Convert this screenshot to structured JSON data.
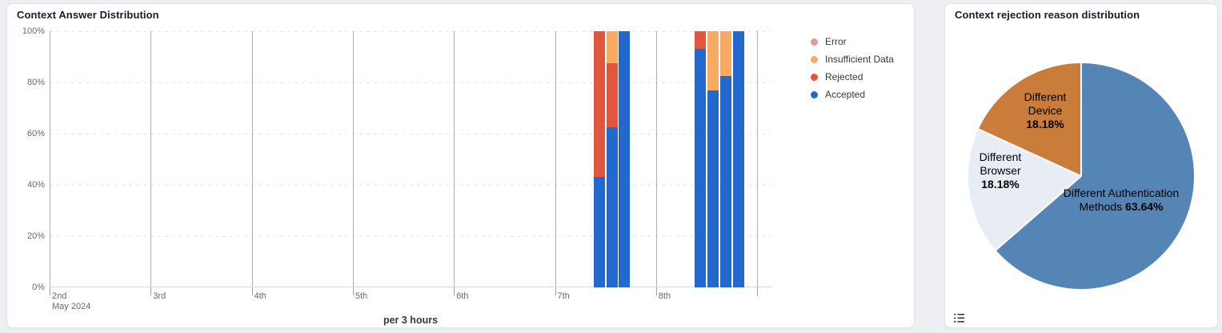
{
  "left_panel": {
    "title": "Context Answer Distribution",
    "x_axis_title": "per 3 hours",
    "legend": [
      {
        "label": "Error",
        "color": "#e7998f"
      },
      {
        "label": "Insufficient Data",
        "color": "#f9aa62"
      },
      {
        "label": "Rejected",
        "color": "#e0563f"
      },
      {
        "label": "Accepted",
        "color": "#2268cd"
      }
    ]
  },
  "right_panel": {
    "title": "Context rejection reason distribution",
    "legend_toggle_icon": "list-icon"
  },
  "chart_data": [
    {
      "type": "bar",
      "subtype": "stacked-percentage-histogram",
      "title": "Context Answer Distribution",
      "interval": "per 3 hours",
      "xlabel": "per 3 hours",
      "ylabel": "",
      "ylim": [
        0,
        100
      ],
      "grid": true,
      "legend_position": "right",
      "y_ticks": [
        "0%",
        "20%",
        "40%",
        "60%",
        "80%",
        "100%"
      ],
      "x_ticks": [
        "2nd",
        "3rd",
        "4th",
        "5th",
        "6th",
        "7th",
        "8th"
      ],
      "x_start_sublabel": "May 2024",
      "series_order_bottom_to_top": [
        "Accepted",
        "Rejected",
        "Insufficient Data",
        "Error"
      ],
      "colors": {
        "Accepted": "#2268cd",
        "Rejected": "#e0563f",
        "Insufficient Data": "#f9aa62",
        "Error": "#e7998f"
      },
      "bars": [
        {
          "time": "May 7 09:00",
          "day": 5,
          "slot": 3,
          "Accepted": 43,
          "Rejected": 57,
          "Insufficient Data": 0,
          "Error": 0
        },
        {
          "time": "May 7 12:00",
          "day": 5,
          "slot": 4,
          "Accepted": 62.5,
          "Rejected": 25,
          "Insufficient Data": 12.5,
          "Error": 0
        },
        {
          "time": "May 7 15:00",
          "day": 5,
          "slot": 5,
          "Accepted": 100,
          "Rejected": 0,
          "Insufficient Data": 0,
          "Error": 0
        },
        {
          "time": "May 8 09:00",
          "day": 6,
          "slot": 3,
          "Accepted": 93,
          "Rejected": 7,
          "Insufficient Data": 0,
          "Error": 0
        },
        {
          "time": "May 8 12:00",
          "day": 6,
          "slot": 4,
          "Accepted": 77,
          "Rejected": 0,
          "Insufficient Data": 23,
          "Error": 0
        },
        {
          "time": "May 8 15:00",
          "day": 6,
          "slot": 5,
          "Accepted": 82.5,
          "Rejected": 0,
          "Insufficient Data": 17.5,
          "Error": 0
        },
        {
          "time": "May 8 18:00",
          "day": 6,
          "slot": 6,
          "Accepted": 100,
          "Rejected": 0,
          "Insufficient Data": 0,
          "Error": 0
        }
      ]
    },
    {
      "type": "pie",
      "title": "Context rejection reason distribution",
      "start_angle_deg": 0,
      "direction": "clockwise",
      "slices": [
        {
          "label": "Different Authentication Methods",
          "value": 63.64,
          "pct_label": "63.64%",
          "color": "#5585b5"
        },
        {
          "label": "Different Browser",
          "value": 18.18,
          "pct_label": "18.18%",
          "color": "#e8ecf3"
        },
        {
          "label": "Different Device",
          "value": 18.18,
          "pct_label": "18.18%",
          "color": "#ca7c3a"
        }
      ]
    }
  ]
}
